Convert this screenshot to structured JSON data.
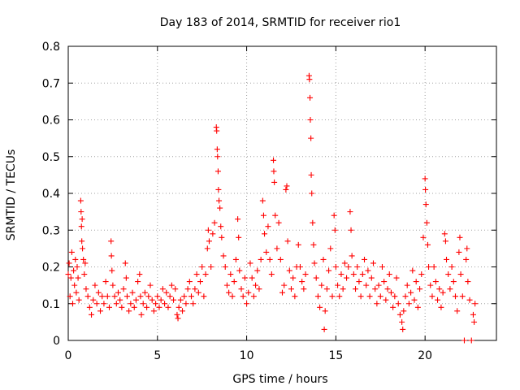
{
  "chart_data": {
    "type": "scatter",
    "title": "Day 183 of 2014, SRMTID for receiver rio1",
    "xlabel": "GPS time / hours",
    "ylabel": "SRMTID / TECUs",
    "xlim": [
      0,
      24
    ],
    "ylim": [
      0,
      0.8
    ],
    "x_ticks": [
      0,
      5,
      10,
      15,
      20
    ],
    "x_tick_labels": [
      "0",
      "5",
      "10",
      "15",
      "20"
    ],
    "y_ticks": [
      0,
      0.1,
      0.2,
      0.3,
      0.4,
      0.5,
      0.6,
      0.7,
      0.8
    ],
    "y_tick_labels": [
      "0",
      "0.1",
      "0.2",
      "0.3",
      "0.4",
      "0.5",
      "0.6",
      "0.7",
      "0.8"
    ],
    "grid": true,
    "marker": "+",
    "color": "#ff0000",
    "series": [
      {
        "name": "SRMTID",
        "points": [
          [
            0.0,
            0.18
          ],
          [
            0.05,
            0.21
          ],
          [
            0.1,
            0.12
          ],
          [
            0.15,
            0.17
          ],
          [
            0.2,
            0.24
          ],
          [
            0.25,
            0.1
          ],
          [
            0.3,
            0.19
          ],
          [
            0.35,
            0.15
          ],
          [
            0.4,
            0.22
          ],
          [
            0.45,
            0.13
          ],
          [
            0.5,
            0.2
          ],
          [
            0.55,
            0.17
          ],
          [
            0.6,
            0.11
          ],
          [
            0.7,
            0.38
          ],
          [
            0.72,
            0.35
          ],
          [
            0.74,
            0.31
          ],
          [
            0.76,
            0.27
          ],
          [
            0.78,
            0.33
          ],
          [
            0.8,
            0.25
          ],
          [
            0.85,
            0.22
          ],
          [
            0.9,
            0.18
          ],
          [
            0.95,
            0.21
          ],
          [
            1.0,
            0.14
          ],
          [
            1.1,
            0.12
          ],
          [
            1.2,
            0.09
          ],
          [
            1.3,
            0.07
          ],
          [
            1.4,
            0.11
          ],
          [
            1.5,
            0.15
          ],
          [
            1.6,
            0.1
          ],
          [
            1.7,
            0.13
          ],
          [
            1.8,
            0.08
          ],
          [
            1.9,
            0.12
          ],
          [
            2.0,
            0.1
          ],
          [
            2.1,
            0.16
          ],
          [
            2.2,
            0.12
          ],
          [
            2.3,
            0.09
          ],
          [
            2.4,
            0.27
          ],
          [
            2.42,
            0.23
          ],
          [
            2.45,
            0.19
          ],
          [
            2.5,
            0.15
          ],
          [
            2.6,
            0.12
          ],
          [
            2.7,
            0.1
          ],
          [
            2.8,
            0.13
          ],
          [
            2.9,
            0.11
          ],
          [
            3.0,
            0.09
          ],
          [
            3.1,
            0.14
          ],
          [
            3.2,
            0.21
          ],
          [
            3.25,
            0.17
          ],
          [
            3.3,
            0.12
          ],
          [
            3.4,
            0.08
          ],
          [
            3.5,
            0.1
          ],
          [
            3.6,
            0.13
          ],
          [
            3.7,
            0.09
          ],
          [
            3.8,
            0.11
          ],
          [
            3.9,
            0.16
          ],
          [
            4.0,
            0.18
          ],
          [
            4.05,
            0.12
          ],
          [
            4.1,
            0.07
          ],
          [
            4.2,
            0.1
          ],
          [
            4.3,
            0.13
          ],
          [
            4.4,
            0.09
          ],
          [
            4.5,
            0.12
          ],
          [
            4.6,
            0.15
          ],
          [
            4.7,
            0.11
          ],
          [
            4.8,
            0.08
          ],
          [
            4.9,
            0.1
          ],
          [
            5.0,
            0.12
          ],
          [
            5.1,
            0.09
          ],
          [
            5.2,
            0.11
          ],
          [
            5.3,
            0.14
          ],
          [
            5.4,
            0.1
          ],
          [
            5.5,
            0.13
          ],
          [
            5.6,
            0.09
          ],
          [
            5.7,
            0.12
          ],
          [
            5.8,
            0.15
          ],
          [
            5.9,
            0.11
          ],
          [
            6.0,
            0.14
          ],
          [
            6.1,
            0.07
          ],
          [
            6.15,
            0.06
          ],
          [
            6.2,
            0.09
          ],
          [
            6.3,
            0.11
          ],
          [
            6.4,
            0.08
          ],
          [
            6.5,
            0.12
          ],
          [
            6.6,
            0.1
          ],
          [
            6.7,
            0.14
          ],
          [
            6.8,
            0.16
          ],
          [
            6.9,
            0.12
          ],
          [
            7.0,
            0.1
          ],
          [
            7.1,
            0.14
          ],
          [
            7.2,
            0.18
          ],
          [
            7.3,
            0.13
          ],
          [
            7.4,
            0.16
          ],
          [
            7.5,
            0.2
          ],
          [
            7.6,
            0.12
          ],
          [
            7.7,
            0.18
          ],
          [
            7.8,
            0.25
          ],
          [
            7.85,
            0.3
          ],
          [
            7.9,
            0.27
          ],
          [
            8.0,
            0.2
          ],
          [
            8.1,
            0.29
          ],
          [
            8.2,
            0.32
          ],
          [
            8.3,
            0.58
          ],
          [
            8.32,
            0.57
          ],
          [
            8.35,
            0.52
          ],
          [
            8.37,
            0.5
          ],
          [
            8.4,
            0.46
          ],
          [
            8.42,
            0.41
          ],
          [
            8.45,
            0.38
          ],
          [
            8.5,
            0.36
          ],
          [
            8.55,
            0.31
          ],
          [
            8.6,
            0.28
          ],
          [
            8.7,
            0.23
          ],
          [
            8.8,
            0.2
          ],
          [
            8.9,
            0.15
          ],
          [
            9.0,
            0.13
          ],
          [
            9.1,
            0.18
          ],
          [
            9.2,
            0.12
          ],
          [
            9.3,
            0.16
          ],
          [
            9.4,
            0.22
          ],
          [
            9.5,
            0.33
          ],
          [
            9.55,
            0.28
          ],
          [
            9.6,
            0.19
          ],
          [
            9.7,
            0.14
          ],
          [
            9.8,
            0.12
          ],
          [
            9.9,
            0.17
          ],
          [
            10.0,
            0.1
          ],
          [
            10.1,
            0.13
          ],
          [
            10.2,
            0.21
          ],
          [
            10.3,
            0.17
          ],
          [
            10.4,
            0.12
          ],
          [
            10.5,
            0.15
          ],
          [
            10.6,
            0.19
          ],
          [
            10.7,
            0.14
          ],
          [
            10.8,
            0.22
          ],
          [
            10.9,
            0.38
          ],
          [
            10.95,
            0.34
          ],
          [
            11.0,
            0.29
          ],
          [
            11.1,
            0.24
          ],
          [
            11.2,
            0.31
          ],
          [
            11.3,
            0.22
          ],
          [
            11.4,
            0.18
          ],
          [
            11.5,
            0.49
          ],
          [
            11.52,
            0.46
          ],
          [
            11.55,
            0.43
          ],
          [
            11.6,
            0.34
          ],
          [
            11.7,
            0.25
          ],
          [
            11.8,
            0.32
          ],
          [
            11.9,
            0.22
          ],
          [
            12.0,
            0.13
          ],
          [
            12.1,
            0.15
          ],
          [
            12.2,
            0.41
          ],
          [
            12.25,
            0.42
          ],
          [
            12.3,
            0.27
          ],
          [
            12.4,
            0.19
          ],
          [
            12.5,
            0.14
          ],
          [
            12.6,
            0.17
          ],
          [
            12.7,
            0.12
          ],
          [
            12.8,
            0.2
          ],
          [
            12.9,
            0.26
          ],
          [
            13.0,
            0.2
          ],
          [
            13.1,
            0.16
          ],
          [
            13.2,
            0.14
          ],
          [
            13.3,
            0.18
          ],
          [
            13.5,
            0.72
          ],
          [
            13.52,
            0.71
          ],
          [
            13.55,
            0.66
          ],
          [
            13.57,
            0.6
          ],
          [
            13.6,
            0.55
          ],
          [
            13.62,
            0.45
          ],
          [
            13.65,
            0.4
          ],
          [
            13.7,
            0.32
          ],
          [
            13.75,
            0.26
          ],
          [
            13.8,
            0.21
          ],
          [
            13.9,
            0.17
          ],
          [
            14.0,
            0.12
          ],
          [
            14.1,
            0.09
          ],
          [
            14.2,
            0.15
          ],
          [
            14.3,
            0.22
          ],
          [
            14.35,
            0.03
          ],
          [
            14.4,
            0.08
          ],
          [
            14.5,
            0.14
          ],
          [
            14.6,
            0.19
          ],
          [
            14.7,
            0.25
          ],
          [
            14.8,
            0.12
          ],
          [
            14.9,
            0.34
          ],
          [
            14.95,
            0.3
          ],
          [
            15.0,
            0.2
          ],
          [
            15.1,
            0.15
          ],
          [
            15.2,
            0.12
          ],
          [
            15.3,
            0.18
          ],
          [
            15.4,
            0.14
          ],
          [
            15.5,
            0.21
          ],
          [
            15.6,
            0.17
          ],
          [
            15.7,
            0.2
          ],
          [
            15.8,
            0.35
          ],
          [
            15.85,
            0.3
          ],
          [
            15.9,
            0.23
          ],
          [
            16.0,
            0.18
          ],
          [
            16.1,
            0.14
          ],
          [
            16.2,
            0.2
          ],
          [
            16.3,
            0.16
          ],
          [
            16.4,
            0.12
          ],
          [
            16.5,
            0.18
          ],
          [
            16.6,
            0.22
          ],
          [
            16.7,
            0.15
          ],
          [
            16.8,
            0.19
          ],
          [
            16.9,
            0.12
          ],
          [
            17.0,
            0.17
          ],
          [
            17.1,
            0.21
          ],
          [
            17.2,
            0.14
          ],
          [
            17.3,
            0.1
          ],
          [
            17.4,
            0.15
          ],
          [
            17.5,
            0.12
          ],
          [
            17.6,
            0.2
          ],
          [
            17.7,
            0.16
          ],
          [
            17.8,
            0.11
          ],
          [
            17.9,
            0.14
          ],
          [
            18.0,
            0.18
          ],
          [
            18.1,
            0.13
          ],
          [
            18.2,
            0.09
          ],
          [
            18.3,
            0.12
          ],
          [
            18.4,
            0.17
          ],
          [
            18.5,
            0.1
          ],
          [
            18.6,
            0.07
          ],
          [
            18.7,
            0.05
          ],
          [
            18.75,
            0.03
          ],
          [
            18.8,
            0.08
          ],
          [
            18.9,
            0.12
          ],
          [
            19.0,
            0.15
          ],
          [
            19.1,
            0.1
          ],
          [
            19.2,
            0.13
          ],
          [
            19.3,
            0.19
          ],
          [
            19.4,
            0.11
          ],
          [
            19.5,
            0.16
          ],
          [
            19.6,
            0.09
          ],
          [
            19.7,
            0.14
          ],
          [
            19.8,
            0.18
          ],
          [
            19.9,
            0.28
          ],
          [
            20.0,
            0.44
          ],
          [
            20.02,
            0.41
          ],
          [
            20.05,
            0.37
          ],
          [
            20.1,
            0.32
          ],
          [
            20.15,
            0.26
          ],
          [
            20.2,
            0.2
          ],
          [
            20.3,
            0.15
          ],
          [
            20.4,
            0.12
          ],
          [
            20.5,
            0.2
          ],
          [
            20.6,
            0.16
          ],
          [
            20.7,
            0.11
          ],
          [
            20.8,
            0.14
          ],
          [
            20.9,
            0.09
          ],
          [
            21.0,
            0.13
          ],
          [
            21.1,
            0.29
          ],
          [
            21.15,
            0.27
          ],
          [
            21.2,
            0.22
          ],
          [
            21.3,
            0.18
          ],
          [
            21.4,
            0.14
          ],
          [
            21.5,
            0.2
          ],
          [
            21.6,
            0.16
          ],
          [
            21.7,
            0.12
          ],
          [
            21.8,
            0.08
          ],
          [
            21.9,
            0.24
          ],
          [
            21.95,
            0.28
          ],
          [
            22.0,
            0.18
          ],
          [
            22.1,
            0.12
          ],
          [
            22.2,
            0.0
          ],
          [
            22.3,
            0.22
          ],
          [
            22.35,
            0.25
          ],
          [
            22.4,
            0.16
          ],
          [
            22.5,
            0.11
          ],
          [
            22.6,
            0.0
          ],
          [
            22.7,
            0.07
          ],
          [
            22.75,
            0.05
          ],
          [
            22.8,
            0.1
          ]
        ]
      }
    ]
  }
}
